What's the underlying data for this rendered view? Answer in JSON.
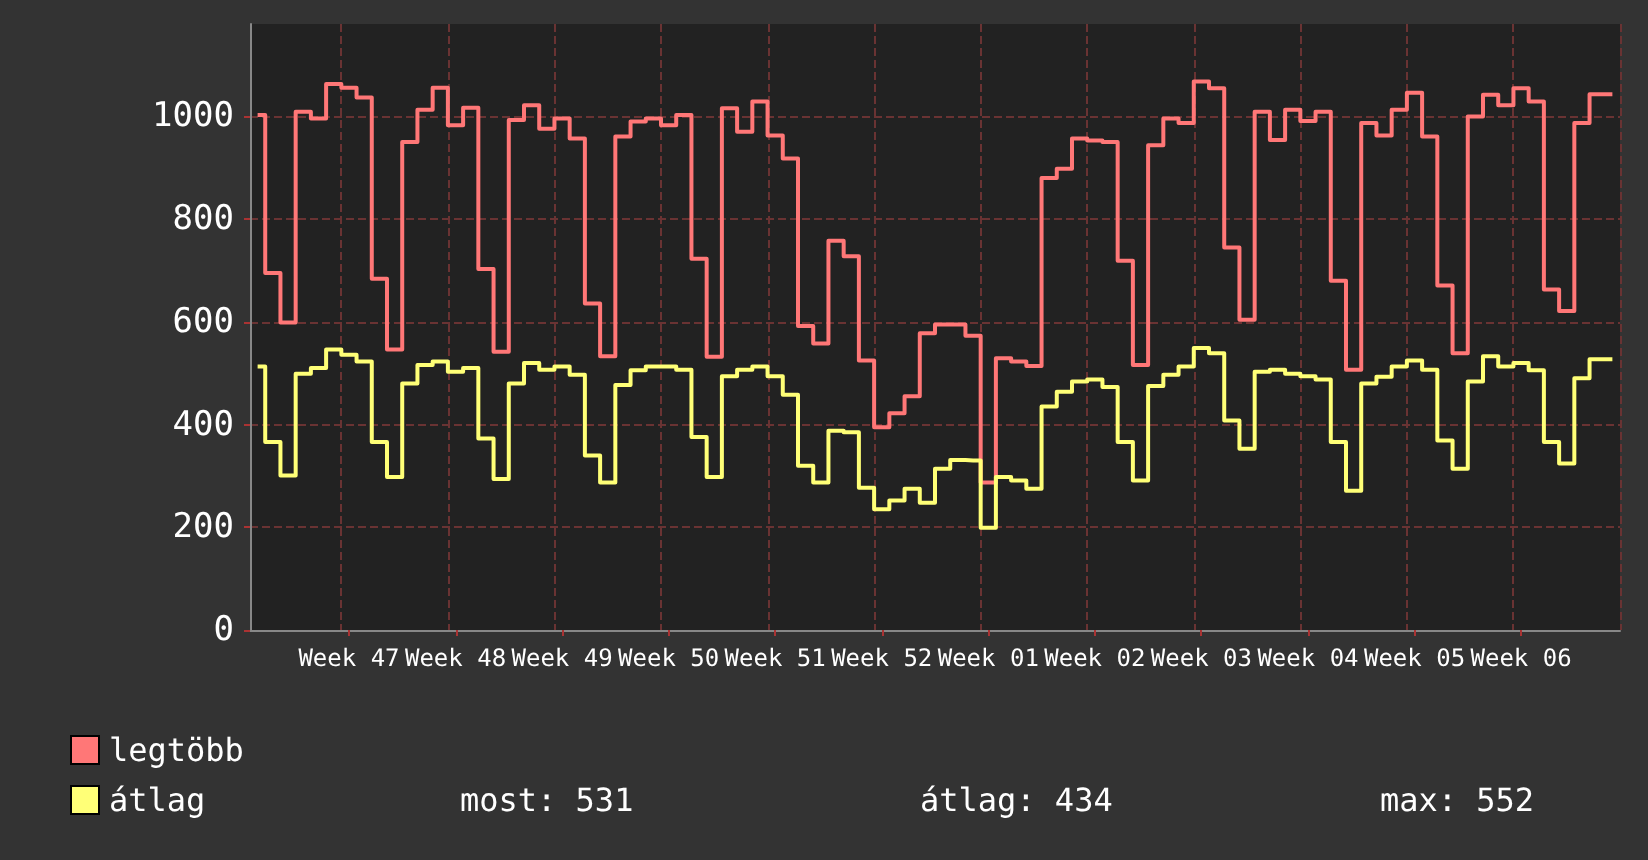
{
  "chart_data": {
    "type": "step",
    "categories": [
      null,
      null,
      null,
      null,
      null,
      null,
      "Week 47",
      null,
      null,
      null,
      null,
      null,
      null,
      "Week 48",
      null,
      null,
      null,
      null,
      null,
      null,
      "Week 49",
      null,
      null,
      null,
      null,
      null,
      null,
      "Week 50",
      null,
      null,
      null,
      null,
      null,
      null,
      "Week 51",
      null,
      null,
      null,
      null,
      null,
      null,
      "Week 52",
      null,
      null,
      null,
      null,
      null,
      null,
      "Week 01",
      null,
      null,
      null,
      null,
      null,
      null,
      "Week 02",
      null,
      null,
      null,
      null,
      null,
      null,
      "Week 03",
      null,
      null,
      null,
      null,
      null,
      null,
      "Week 04",
      null,
      null,
      null,
      null,
      null,
      null,
      "Week 05",
      null,
      null,
      null,
      null,
      null,
      null,
      "Week 06",
      null,
      null,
      null,
      null,
      null,
      null
    ],
    "series": [
      {
        "name": "legtöbb",
        "color": "#ff7777",
        "values": [
          1003,
          695,
          599,
          1009,
          996,
          1063,
          1056,
          1037,
          684,
          546,
          950,
          1013,
          1056,
          983,
          1017,
          703,
          542,
          993,
          1022,
          976,
          996,
          957,
          636,
          533,
          961,
          990,
          996,
          983,
          1003,
          723,
          532,
          1016,
          970,
          1029,
          963,
          918,
          592,
          558,
          758,
          728,
          525,
          395,
          422,
          455,
          578,
          595,
          595,
          573,
          287,
          529,
          523,
          514,
          880,
          898,
          957,
          953,
          950,
          719,
          516,
          944,
          996,
          987,
          1068,
          1055,
          745,
          604,
          1009,
          954,
          1013,
          991,
          1009,
          680,
          507,
          987,
          963,
          1013,
          1046,
          961,
          671,
          539,
          1000,
          1042,
          1022,
          1055,
          1029,
          663,
          621,
          987,
          1043,
          1043
        ]
      },
      {
        "name": "átlag",
        "color": "#ffff77",
        "values": [
          513,
          366,
          301,
          499,
          510,
          546,
          536,
          523,
          366,
          298,
          480,
          516,
          523,
          503,
          510,
          373,
          294,
          480,
          520,
          507,
          513,
          497,
          340,
          287,
          477,
          506,
          513,
          513,
          507,
          376,
          298,
          494,
          507,
          513,
          494,
          458,
          320,
          287,
          388,
          385,
          277,
          235,
          252,
          275,
          248,
          314,
          331,
          330,
          199,
          298,
          291,
          275,
          435,
          464,
          484,
          488,
          473,
          366,
          291,
          475,
          497,
          513,
          549,
          539,
          408,
          353,
          503,
          507,
          499,
          494,
          488,
          366,
          271,
          480,
          493,
          513,
          525,
          507,
          369,
          314,
          484,
          533,
          513,
          520,
          506,
          366,
          324,
          490,
          527,
          527
        ]
      }
    ],
    "ylim": [
      0,
      1180
    ],
    "yticks": [
      0,
      200,
      400,
      600,
      800,
      1000
    ],
    "grid": true,
    "legend": "bottom left",
    "annotations": [
      "most: 531",
      "átlag: 434",
      "max: 552"
    ]
  }
}
